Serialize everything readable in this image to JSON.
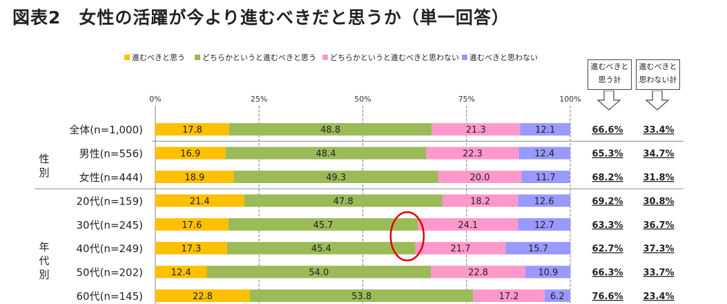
{
  "title": "図表2　女性の活躍が今より進むべきだと思うか（単一回答）",
  "colors": {
    "series": [
      "#ffc000",
      "#9bbb59",
      "#ff99cc",
      "#9999ff"
    ],
    "grid": "#808080",
    "highlight": "#e00000"
  },
  "summary_headers": [
    "進むべきと\n思う計",
    "進むべきと\n思わない計"
  ],
  "group_labels": [
    {
      "text": "性\n別",
      "rows": [
        1,
        2
      ]
    },
    {
      "text": "年\n代\n別",
      "rows": [
        3,
        8
      ]
    }
  ],
  "chart_data": {
    "type": "bar",
    "orientation": "horizontal",
    "stacked": true,
    "percent": true,
    "x_ticks": [
      "0%",
      "25%",
      "50%",
      "75%",
      "100%"
    ],
    "xlim": [
      0,
      100
    ],
    "legend_position": "top",
    "grid": true,
    "categories": [
      "全体(n=1,000)",
      "男性(n=556)",
      "女性(n=444)",
      "20代(n=159)",
      "30代(n=245)",
      "40代(n=249)",
      "50代(n=202)",
      "60代(n=145)"
    ],
    "series": [
      {
        "name": "進むべきと思う",
        "values": [
          17.8,
          16.9,
          18.9,
          21.4,
          17.6,
          17.3,
          12.4,
          22.8
        ]
      },
      {
        "name": "どちらかというと進むべきと思う",
        "values": [
          48.8,
          48.4,
          49.3,
          47.8,
          45.7,
          45.4,
          54.0,
          53.8
        ]
      },
      {
        "name": "どちらかというと進むべきと思わない",
        "values": [
          21.3,
          22.3,
          20.0,
          18.2,
          24.1,
          21.7,
          22.8,
          17.2
        ]
      },
      {
        "name": "進むべきと思わない",
        "values": [
          12.1,
          12.4,
          11.7,
          12.6,
          12.7,
          15.7,
          10.9,
          6.2
        ]
      }
    ],
    "value_labels": [
      [
        "17.8",
        "48.8",
        "21.3",
        "12.1"
      ],
      [
        "16.9",
        "48.4",
        "22.3",
        "12.4"
      ],
      [
        "18.9",
        "49.3",
        "20.0",
        "11.7"
      ],
      [
        "21.4",
        "47.8",
        "18.2",
        "12.6"
      ],
      [
        "17.6",
        "45.7",
        "24.1",
        "12.7"
      ],
      [
        "17.3",
        "45.4",
        "21.7",
        "15.7"
      ],
      [
        "12.4",
        "54.0",
        "22.8",
        "10.9"
      ],
      [
        "22.8",
        "53.8",
        "17.2",
        "6.2"
      ]
    ],
    "summary": {
      "agree_total": [
        "66.6%",
        "65.3%",
        "68.2%",
        "69.2%",
        "63.3%",
        "62.7%",
        "66.3%",
        "76.6%"
      ],
      "disagree_total": [
        "33.4%",
        "34.7%",
        "31.8%",
        "30.8%",
        "36.7%",
        "37.3%",
        "33.7%",
        "23.4%"
      ]
    },
    "annotation": {
      "type": "ellipse",
      "rows": [
        "30代(n=245)",
        "40代(n=249)"
      ],
      "at_value": 63.2
    }
  }
}
